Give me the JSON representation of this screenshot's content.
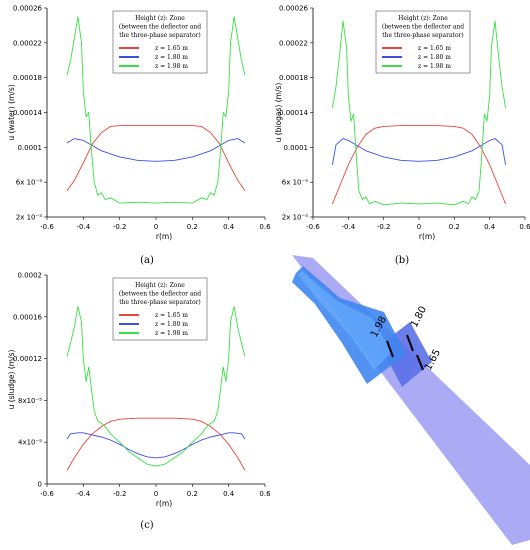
{
  "chart_data": [
    {
      "type": "line",
      "caption": "(a)",
      "xlabel": "r(m)",
      "ylabel": "u (water) (m/s)",
      "xlim": [
        -0.6,
        0.6
      ],
      "ylim": [
        2e-05,
        0.00026
      ],
      "xticks": [
        "-0.6",
        "-0.4",
        "-0.2",
        "0",
        "0.2",
        "0.4",
        "0.6"
      ],
      "yticks": [
        "2x 10⁻⁵",
        "6x 10⁻⁵",
        "0.0001",
        "0.00014",
        "0.00018",
        "0.00022",
        "0.00026"
      ],
      "legend_title": [
        "Height (z): Zone",
        "(between the deflector and",
        "the three-phase separator)"
      ],
      "legend_position": "top-center",
      "series": [
        {
          "name": "z = 1.65 m",
          "color": "#e9453b",
          "x": [
            -0.49,
            -0.45,
            -0.4,
            -0.35,
            -0.3,
            -0.25,
            -0.2,
            -0.1,
            0,
            0.1,
            0.2,
            0.25,
            0.3,
            0.35,
            0.4,
            0.45,
            0.49
          ],
          "y": [
            5e-05,
            6.2e-05,
            8.2e-05,
            0.000104,
            0.000117,
            0.000124,
            0.000125,
            0.000125,
            0.000125,
            0.000125,
            0.000125,
            0.000124,
            0.000117,
            0.000104,
            8.2e-05,
            6.2e-05,
            5e-05
          ]
        },
        {
          "name": "z = 1.80 m",
          "color": "#3d4fe0",
          "x": [
            -0.49,
            -0.45,
            -0.4,
            -0.35,
            -0.3,
            -0.2,
            -0.1,
            0,
            0.1,
            0.2,
            0.3,
            0.35,
            0.4,
            0.45,
            0.49
          ],
          "y": [
            0.000105,
            0.00011,
            0.000108,
            0.000102,
            9.6e-05,
            8.9e-05,
            8.5e-05,
            8.4e-05,
            8.5e-05,
            8.9e-05,
            9.6e-05,
            0.000102,
            0.000108,
            0.00011,
            0.000105
          ]
        },
        {
          "name": "z = 1.98 m",
          "color": "#39e043",
          "x": [
            -0.49,
            -0.47,
            -0.45,
            -0.43,
            -0.41,
            -0.4,
            -0.385,
            -0.37,
            -0.355,
            -0.34,
            -0.32,
            -0.3,
            -0.28,
            -0.25,
            -0.2,
            -0.1,
            0,
            0.1,
            0.2,
            0.25,
            0.28,
            0.3,
            0.32,
            0.34,
            0.355,
            0.37,
            0.385,
            0.4,
            0.41,
            0.43,
            0.45,
            0.47,
            0.49
          ],
          "y": [
            0.000183,
            0.0002,
            0.000225,
            0.00025,
            0.00022,
            0.000165,
            0.000135,
            0.00014,
            9.5e-05,
            6e-05,
            4.5e-05,
            4.8e-05,
            4e-05,
            4.2e-05,
            3.6e-05,
            3.7e-05,
            3.6e-05,
            3.7e-05,
            3.6e-05,
            4.2e-05,
            4e-05,
            4.8e-05,
            4.5e-05,
            6e-05,
            9.5e-05,
            0.00014,
            0.000135,
            0.000165,
            0.00022,
            0.00025,
            0.000225,
            0.0002,
            0.000183
          ]
        }
      ]
    },
    {
      "type": "line",
      "caption": "(b)",
      "xlabel": "r(m)",
      "ylabel": "u (biogas) (m/s)",
      "xlim": [
        -0.6,
        0.6
      ],
      "ylim": [
        2e-05,
        0.00026
      ],
      "xticks": [
        "-0.6",
        "-0.4",
        "-0.2",
        "0",
        "0.2",
        "0.4",
        "0.6"
      ],
      "yticks": [
        "2x 10⁻⁵",
        "6x 10⁻⁵",
        "0.0001",
        "0.00014",
        "0.00018",
        "0.00022",
        "0.00026"
      ],
      "legend_title": [
        "Height (z): Zone",
        "(between the deflector and",
        "the three-phase separator)"
      ],
      "legend_position": "top-center",
      "series": [
        {
          "name": "z = 1.65 m",
          "color": "#e9453b",
          "x": [
            -0.49,
            -0.45,
            -0.4,
            -0.35,
            -0.3,
            -0.25,
            -0.2,
            -0.1,
            0,
            0.1,
            0.2,
            0.25,
            0.3,
            0.35,
            0.4,
            0.45,
            0.49
          ],
          "y": [
            3.5e-05,
            5.5e-05,
            8e-05,
            0.0001,
            0.000115,
            0.000122,
            0.000124,
            0.000125,
            0.000125,
            0.000125,
            0.000124,
            0.000122,
            0.000115,
            0.0001,
            8e-05,
            5.5e-05,
            3.5e-05
          ]
        },
        {
          "name": "z = 1.80 m",
          "color": "#3d4fe0",
          "x": [
            -0.49,
            -0.47,
            -0.43,
            -0.4,
            -0.35,
            -0.3,
            -0.2,
            -0.1,
            0,
            0.1,
            0.2,
            0.3,
            0.35,
            0.4,
            0.43,
            0.47,
            0.49
          ],
          "y": [
            8e-05,
            0.000103,
            0.00011,
            0.000108,
            0.000102,
            9.6e-05,
            8.9e-05,
            8.5e-05,
            8.4e-05,
            8.5e-05,
            8.9e-05,
            9.6e-05,
            0.000102,
            0.000108,
            0.00011,
            0.000103,
            8e-05
          ]
        },
        {
          "name": "z = 1.98 m",
          "color": "#39e043",
          "x": [
            -0.49,
            -0.47,
            -0.45,
            -0.43,
            -0.41,
            -0.4,
            -0.385,
            -0.37,
            -0.355,
            -0.34,
            -0.32,
            -0.3,
            -0.28,
            -0.25,
            -0.2,
            -0.1,
            0,
            0.1,
            0.2,
            0.25,
            0.28,
            0.3,
            0.32,
            0.34,
            0.355,
            0.37,
            0.385,
            0.4,
            0.41,
            0.43,
            0.45,
            0.47,
            0.49
          ],
          "y": [
            0.000145,
            0.00017,
            0.000205,
            0.000245,
            0.000215,
            0.00016,
            0.00013,
            0.000138,
            9e-05,
            5e-05,
            4e-05,
            4.3e-05,
            3.5e-05,
            3.8e-05,
            3.4e-05,
            3.6e-05,
            3.5e-05,
            3.6e-05,
            3.4e-05,
            3.8e-05,
            3.5e-05,
            4.3e-05,
            4e-05,
            5e-05,
            9e-05,
            0.000138,
            0.00013,
            0.00016,
            0.000215,
            0.000245,
            0.000205,
            0.00017,
            0.000145
          ]
        }
      ]
    },
    {
      "type": "line",
      "caption": "(c)",
      "xlabel": "r(m)",
      "ylabel": "u (sludge) (m/s)",
      "xlim": [
        -0.6,
        0.6
      ],
      "ylim": [
        0,
        0.0002
      ],
      "xticks": [
        "-0.6",
        "-0.4",
        "-0.2",
        "0",
        "0.2",
        "0.4",
        "0.6"
      ],
      "yticks": [
        "0",
        "4x10⁻⁵",
        "8x10⁻⁵",
        "0.00012",
        "0.00016",
        "0.0002"
      ],
      "legend_title": [
        "Height (z): Zone",
        "(between the deflector and",
        "the three-phase separator)"
      ],
      "legend_position": "top-center",
      "series": [
        {
          "name": "z = 1.65 m",
          "color": "#e9453b",
          "x": [
            -0.49,
            -0.45,
            -0.4,
            -0.35,
            -0.3,
            -0.25,
            -0.2,
            -0.1,
            0,
            0.1,
            0.2,
            0.25,
            0.3,
            0.35,
            0.4,
            0.45,
            0.49
          ],
          "y": [
            1.3e-05,
            2.5e-05,
            3.8e-05,
            4.8e-05,
            5.5e-05,
            6e-05,
            6.2e-05,
            6.3e-05,
            6.3e-05,
            6.3e-05,
            6.2e-05,
            6e-05,
            5.5e-05,
            4.8e-05,
            3.8e-05,
            2.5e-05,
            1.3e-05
          ]
        },
        {
          "name": "z = 1.80 m",
          "color": "#3d4fe0",
          "x": [
            -0.49,
            -0.47,
            -0.43,
            -0.4,
            -0.35,
            -0.3,
            -0.25,
            -0.2,
            -0.15,
            -0.1,
            -0.05,
            0,
            0.05,
            0.1,
            0.15,
            0.2,
            0.25,
            0.3,
            0.35,
            0.4,
            0.43,
            0.47,
            0.49
          ],
          "y": [
            4.3e-05,
            4.8e-05,
            4.9e-05,
            4.9e-05,
            4.7e-05,
            4.5e-05,
            4.2e-05,
            3.8e-05,
            3.3e-05,
            2.9e-05,
            2.6e-05,
            2.5e-05,
            2.6e-05,
            2.9e-05,
            3.3e-05,
            3.8e-05,
            4.2e-05,
            4.5e-05,
            4.7e-05,
            4.9e-05,
            4.9e-05,
            4.8e-05,
            4.3e-05
          ]
        },
        {
          "name": "z = 1.98 m",
          "color": "#39e043",
          "x": [
            -0.49,
            -0.47,
            -0.45,
            -0.43,
            -0.41,
            -0.4,
            -0.385,
            -0.37,
            -0.355,
            -0.34,
            -0.32,
            -0.3,
            -0.28,
            -0.25,
            -0.2,
            -0.15,
            -0.1,
            -0.05,
            0,
            0.05,
            0.1,
            0.15,
            0.2,
            0.25,
            0.28,
            0.3,
            0.32,
            0.34,
            0.355,
            0.37,
            0.385,
            0.4,
            0.41,
            0.43,
            0.45,
            0.47,
            0.49
          ],
          "y": [
            0.000122,
            0.000135,
            0.00015,
            0.00017,
            0.000155,
            0.00012,
            9.8e-05,
            0.000112,
            9e-05,
            7e-05,
            6e-05,
            5.8e-05,
            5.5e-05,
            4.8e-05,
            4e-05,
            3.1e-05,
            2.5e-05,
            1.9e-05,
            1.7e-05,
            1.9e-05,
            2.5e-05,
            3.1e-05,
            4e-05,
            4.8e-05,
            5.5e-05,
            5.8e-05,
            6e-05,
            7e-05,
            9e-05,
            0.000112,
            9.8e-05,
            0.00012,
            0.000155,
            0.00017,
            0.00015,
            0.000135,
            0.000122
          ]
        }
      ]
    }
  ],
  "schematic": {
    "labels": [
      "1.98",
      "1.80",
      "1.65"
    ],
    "colors": {
      "column": "#9b9cf2",
      "cone": "#3f86f0",
      "baffle": "#5b70e8"
    }
  }
}
